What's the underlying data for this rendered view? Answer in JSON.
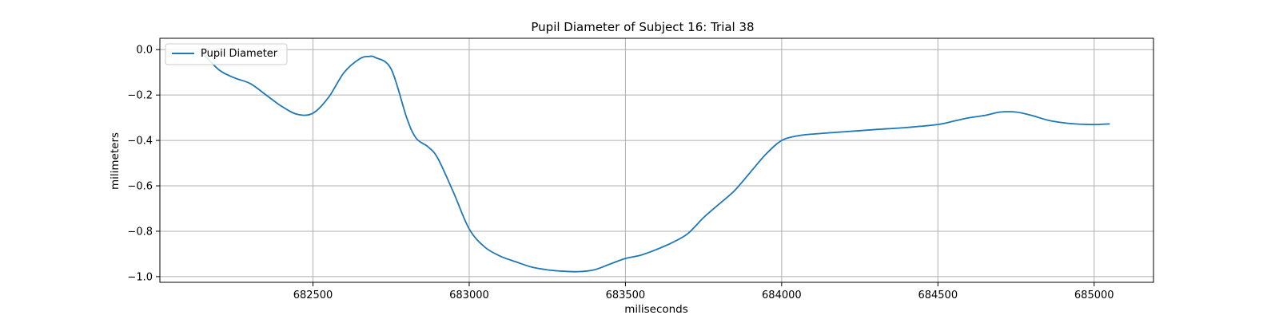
{
  "chart_data": {
    "type": "line",
    "title": "Pupil Diameter of Subject 16: Trial 38",
    "xlabel": "miliseconds",
    "ylabel": "milimeters",
    "xlim": [
      682010,
      685190
    ],
    "ylim": [
      -1.025,
      0.05
    ],
    "xticks": [
      682500,
      683000,
      683500,
      684000,
      684500,
      685000
    ],
    "yticks": [
      0.0,
      -0.2,
      -0.4,
      -0.6,
      -0.8,
      -1.0
    ],
    "xtick_labels": [
      "682500",
      "683000",
      "683500",
      "684000",
      "684500",
      "685000"
    ],
    "ytick_labels": [
      "0.0",
      "−0.2",
      "−0.4",
      "−0.6",
      "−0.8",
      "−1.0"
    ],
    "grid": true,
    "legend": {
      "location": "upper-left",
      "entries": [
        "Pupil Diameter"
      ]
    },
    "series": [
      {
        "name": "Pupil Diameter",
        "color": "#1f77b4",
        "x": [
          682150,
          682200,
          682250,
          682300,
          682350,
          682400,
          682450,
          682500,
          682550,
          682600,
          682650,
          682680,
          682700,
          682750,
          682800,
          682830,
          682870,
          682900,
          682950,
          683000,
          683050,
          683100,
          683150,
          683200,
          683250,
          683300,
          683350,
          683400,
          683450,
          683500,
          683550,
          683600,
          683650,
          683700,
          683750,
          683800,
          683850,
          683900,
          683950,
          684000,
          684050,
          684100,
          684200,
          684300,
          684400,
          684500,
          684550,
          684600,
          684650,
          684700,
          684750,
          684800,
          684850,
          684900,
          684950,
          685000,
          685050
        ],
        "values": [
          -0.02,
          -0.09,
          -0.125,
          -0.15,
          -0.2,
          -0.25,
          -0.285,
          -0.28,
          -0.21,
          -0.1,
          -0.04,
          -0.03,
          -0.035,
          -0.085,
          -0.3,
          -0.39,
          -0.43,
          -0.48,
          -0.63,
          -0.79,
          -0.87,
          -0.91,
          -0.935,
          -0.958,
          -0.97,
          -0.976,
          -0.978,
          -0.97,
          -0.945,
          -0.92,
          -0.905,
          -0.88,
          -0.85,
          -0.81,
          -0.74,
          -0.68,
          -0.62,
          -0.54,
          -0.46,
          -0.4,
          -0.38,
          -0.372,
          -0.362,
          -0.352,
          -0.343,
          -0.33,
          -0.315,
          -0.3,
          -0.29,
          -0.275,
          -0.275,
          -0.29,
          -0.31,
          -0.322,
          -0.328,
          -0.33,
          -0.327
        ]
      }
    ]
  }
}
